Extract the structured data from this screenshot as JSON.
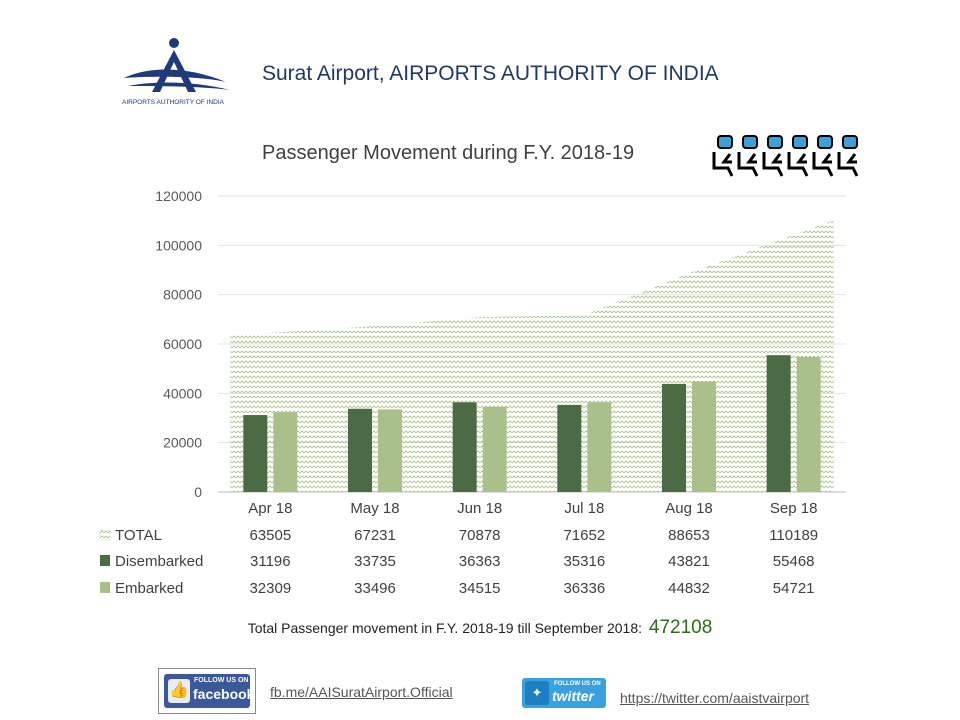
{
  "header": {
    "title": "Surat Airport,  AIRPORTS AUTHORITY OF INDIA",
    "logo_text": "AIRPORTS AUTHORITY OF INDIA"
  },
  "chart_data": {
    "type": "bar",
    "title": "Passenger Movement during F.Y. 2018-19",
    "categories": [
      "Apr 18",
      "May 18",
      "Jun 18",
      "Jul 18",
      "Aug 18",
      "Sep 18"
    ],
    "ylim": [
      0,
      120000
    ],
    "yticks": [
      "0",
      "20000",
      "40000",
      "60000",
      "80000",
      "100000",
      "120000"
    ],
    "grid": true,
    "series": [
      {
        "name": "TOTAL",
        "type": "area",
        "values": [
          63505,
          67231,
          70878,
          71652,
          88653,
          110189
        ],
        "color": "#a9c08a"
      },
      {
        "name": "Disembarked",
        "type": "bar",
        "values": [
          31196,
          33735,
          36363,
          35316,
          43821,
          55468
        ],
        "color": "#4a6b43"
      },
      {
        "name": "Embarked",
        "type": "bar",
        "values": [
          32309,
          33496,
          34515,
          36336,
          44832,
          54721
        ],
        "color": "#a9c08a"
      }
    ],
    "data_table": true
  },
  "summary": {
    "label": "Total Passenger movement in F.Y. 2018-19 till September 2018:",
    "value": "472108"
  },
  "social": {
    "facebook_badge_top": "FOLLOW US ON",
    "facebook_badge_word": "facebook",
    "facebook_link": "fb.me/AAISuratAirport.Official",
    "twitter_badge_top": "FOLLOW US ON",
    "twitter_badge_word": "twitter",
    "twitter_link": "https://twitter.com/aaistvairport"
  },
  "icons": {
    "logo": "aai-logo-icon",
    "seats": "passenger-seats-icon",
    "facebook": "facebook-thumb-icon",
    "twitter": "twitter-bird-icon"
  }
}
